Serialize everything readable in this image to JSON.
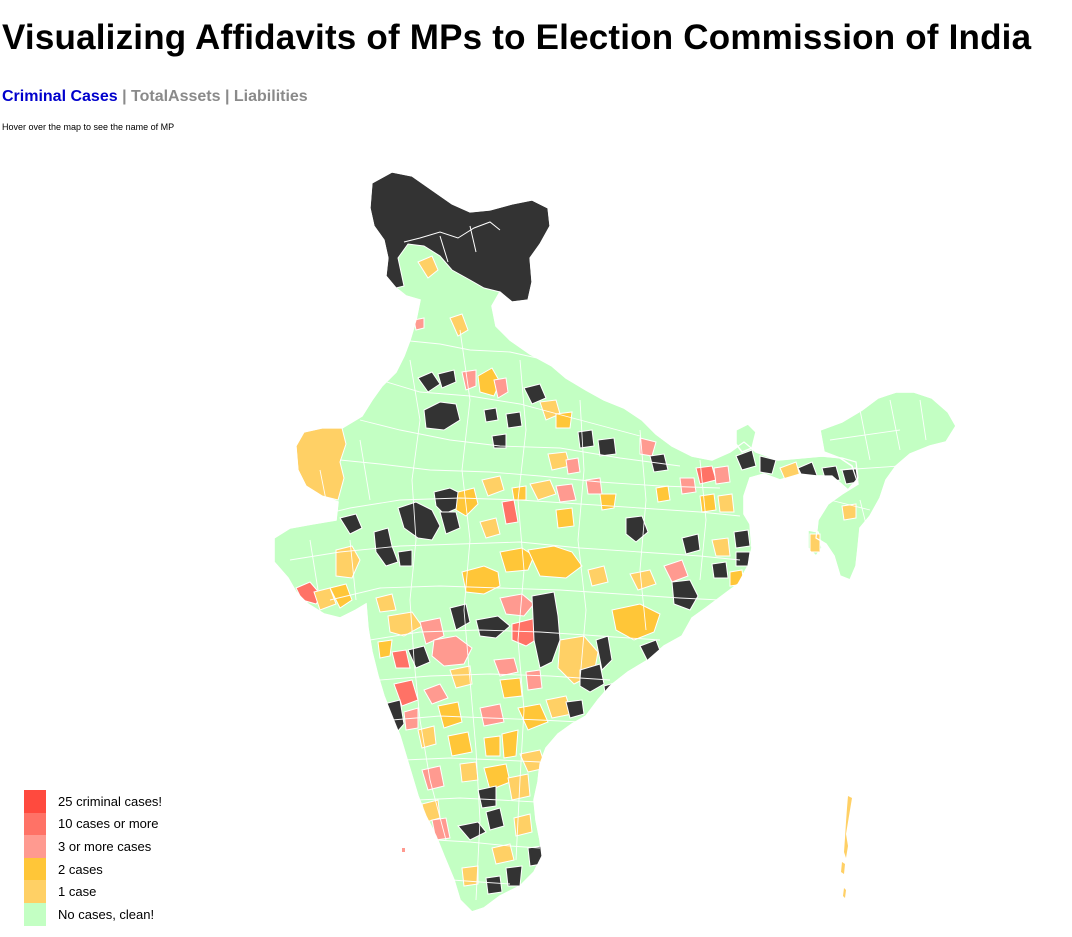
{
  "title": "Visualizing Affidavits of MPs to Election Commission of India",
  "nav": {
    "criminal": "Criminal Cases",
    "assets": "TotalAssets",
    "liabilities": "Liabilities",
    "separator": "|"
  },
  "hint": "Hover over the map to see the name of MP",
  "colors": {
    "clean": "#c3ffc3",
    "one": "#ffd065",
    "two": "#ffc638",
    "three_plus": "#ff9a90",
    "ten_plus": "#ff7266",
    "twenty_five": "#ff4a3e",
    "no_data": "#333333",
    "border": "#ffffff"
  },
  "legend": [
    {
      "label": "25 criminal cases!",
      "color": "#ff4a3e"
    },
    {
      "label": "10 cases or more",
      "color": "#ff7266"
    },
    {
      "label": "3 or more cases",
      "color": "#ff9a90"
    },
    {
      "label": "2 cases",
      "color": "#ffc638"
    },
    {
      "label": "1 case",
      "color": "#ffd065"
    },
    {
      "label": "No cases, clean!",
      "color": "#c3ffc3"
    }
  ]
}
